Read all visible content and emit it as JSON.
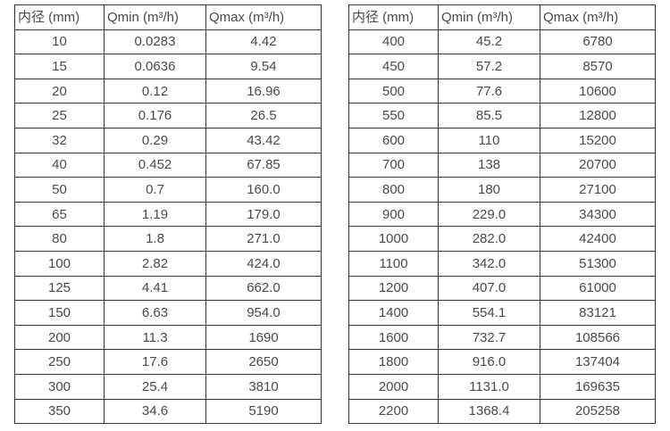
{
  "colors": {
    "background": "#ffffff",
    "table_border": "#333333",
    "text": "#4a4a4a"
  },
  "chart_data": [
    {
      "type": "table",
      "title": "",
      "columns": [
        "内径 (mm)",
        "Qmin (m³/h)",
        "Qmax (m³/h)"
      ],
      "rows": [
        [
          "10",
          "0.0283",
          "4.42"
        ],
        [
          "15",
          "0.0636",
          "9.54"
        ],
        [
          "20",
          "0.12",
          "16.96"
        ],
        [
          "25",
          "0.176",
          "26.5"
        ],
        [
          "32",
          "0.29",
          "43.42"
        ],
        [
          "40",
          "0.452",
          "67.85"
        ],
        [
          "50",
          "0.7",
          "160.0"
        ],
        [
          "65",
          "1.19",
          "179.0"
        ],
        [
          "80",
          "1.8",
          "271.0"
        ],
        [
          "100",
          "2.82",
          "424.0"
        ],
        [
          "125",
          "4.41",
          "662.0"
        ],
        [
          "150",
          "6.63",
          "954.0"
        ],
        [
          "200",
          "11.3",
          "1690"
        ],
        [
          "250",
          "17.6",
          "2650"
        ],
        [
          "300",
          "25.4",
          "3810"
        ],
        [
          "350",
          "34.6",
          "5190"
        ]
      ]
    },
    {
      "type": "table",
      "title": "",
      "columns": [
        "内径 (mm)",
        "Qmin (m³/h)",
        "Qmax (m³/h)"
      ],
      "rows": [
        [
          "400",
          "45.2",
          "6780"
        ],
        [
          "450",
          "57.2",
          "8570"
        ],
        [
          "500",
          "77.6",
          "10600"
        ],
        [
          "550",
          "85.5",
          "12800"
        ],
        [
          "600",
          "110",
          "15200"
        ],
        [
          "700",
          "138",
          "20700"
        ],
        [
          "800",
          "180",
          "27100"
        ],
        [
          "900",
          "229.0",
          "34300"
        ],
        [
          "1000",
          "282.0",
          "42400"
        ],
        [
          "1100",
          "342.0",
          "51300"
        ],
        [
          "1200",
          "407.0",
          "61000"
        ],
        [
          "1400",
          "554.1",
          "83121"
        ],
        [
          "1600",
          "732.7",
          "108566"
        ],
        [
          "1800",
          "916.0",
          "137404"
        ],
        [
          "2000",
          "1131.0",
          "169635"
        ],
        [
          "2200",
          "1368.4",
          "205258"
        ]
      ]
    }
  ]
}
